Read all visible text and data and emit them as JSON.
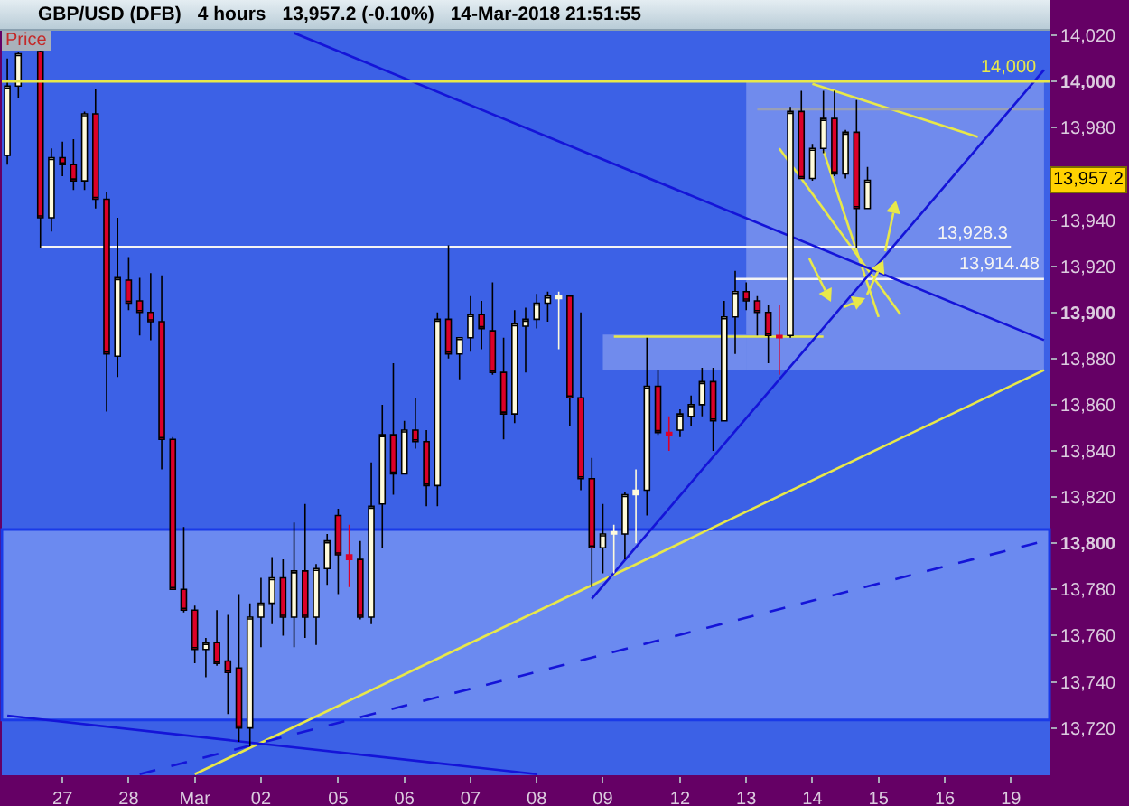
{
  "chart_data": {
    "type": "candlestick",
    "title": "GBP/USD (DFB)",
    "subtitle": "4 hours",
    "ylabel": "Price",
    "annotations": [
      "13,957.2 (-0.10%)",
      "14-Mar-2018 21:51:55",
      {
        "text": "13,957.2",
        "y": 13957.2
      }
    ],
    "categories": [
      null,
      null,
      null,
      null,
      null,
      "27",
      null,
      null,
      null,
      null,
      null,
      "28",
      null,
      null,
      null,
      null,
      null,
      "Mar",
      null,
      null,
      null,
      null,
      null,
      "02",
      null,
      null,
      null,
      null,
      null,
      null,
      "05",
      null,
      null,
      null,
      null,
      null,
      "06",
      null,
      null,
      null,
      null,
      null,
      "07",
      null,
      null,
      null,
      null,
      null,
      "08",
      null,
      null,
      null,
      null,
      null,
      "09",
      null,
      null,
      null,
      null,
      null,
      null,
      "12",
      null,
      null,
      null,
      null,
      null,
      "13",
      null,
      null,
      null,
      null,
      null,
      "14",
      null,
      null,
      null,
      null,
      null,
      "15",
      null,
      null,
      null,
      null,
      null,
      "16",
      null,
      null,
      null,
      null,
      null,
      "19",
      null,
      null,
      null
    ],
    "ohlc": [
      [
        13968,
        14010,
        13964,
        13998
      ],
      [
        13998,
        14013,
        13993,
        14012
      ],
      null,
      [
        14013,
        14014,
        13928,
        13941
      ],
      [
        13941,
        13971,
        13935,
        13967
      ],
      [
        13967,
        13974,
        13959,
        13964
      ],
      [
        13964,
        13975,
        13953,
        13957
      ],
      [
        13957,
        13987,
        13953,
        13986
      ],
      [
        13986,
        13997,
        13945,
        13949
      ],
      [
        13949,
        13952,
        13857,
        13882
      ],
      [
        13881,
        13941,
        13872,
        13915
      ],
      [
        13914,
        13924,
        13901,
        13904
      ],
      [
        13905,
        13915,
        13890,
        13900
      ],
      [
        13900,
        13917,
        13888,
        13896
      ],
      [
        13896,
        13916,
        13832,
        13845
      ],
      [
        13845,
        13846,
        13780,
        13780
      ],
      [
        13780,
        13807,
        13770,
        13771
      ],
      [
        13771,
        13773,
        13748,
        13754
      ],
      [
        13754,
        13759,
        13742,
        13757
      ],
      [
        13757,
        13771,
        13747,
        13748
      ],
      [
        13749,
        13769,
        13726,
        13744
      ],
      [
        13746,
        13778,
        13714,
        13720
      ],
      [
        13720,
        13774,
        13712,
        13768
      ],
      [
        13768,
        13785,
        13755,
        13774
      ],
      [
        13774,
        13794,
        13765,
        13785
      ],
      [
        13785,
        13793,
        13760,
        13768
      ],
      [
        13768,
        13809,
        13755,
        13788
      ],
      [
        13788,
        13817,
        13759,
        13768
      ],
      [
        13768,
        13791,
        13756,
        13789
      ],
      [
        13789,
        13804,
        13782,
        13801
      ],
      [
        13812,
        13815,
        13778,
        13795
      ],
      [
        13795,
        13808,
        13781,
        13793
      ],
      [
        13793,
        13801,
        13767,
        13768
      ],
      [
        13768,
        13835,
        13765,
        13816
      ],
      [
        13817,
        13860,
        13798,
        13847
      ],
      [
        13847,
        13878,
        13821,
        13830
      ],
      [
        13830,
        13853,
        13830,
        13849
      ],
      [
        13849,
        13863,
        13841,
        13844
      ],
      [
        13844,
        13849,
        13816,
        13825
      ],
      [
        13825,
        13900,
        13816,
        13897
      ],
      [
        13897,
        13929,
        13880,
        13882
      ],
      [
        13882,
        13889,
        13871,
        13889
      ],
      [
        13889,
        13907,
        13883,
        13899
      ],
      [
        13899,
        13905,
        13884,
        13893
      ],
      [
        13892,
        13913,
        13873,
        13874
      ],
      [
        13874,
        13889,
        13845,
        13856
      ],
      [
        13856,
        13901,
        13852,
        13895
      ],
      [
        13894,
        13902,
        13874,
        13897
      ],
      [
        13897,
        13908,
        13893,
        13904
      ],
      [
        13904,
        13909,
        13896,
        13907
      ],
      [
        13906,
        13909,
        13884,
        13907
      ],
      [
        13907,
        13907,
        13851,
        13863
      ],
      [
        13863,
        13900,
        13823,
        13828
      ],
      [
        13828,
        13837,
        13781,
        13798
      ],
      [
        13798,
        13817,
        13787,
        13804
      ],
      [
        13804,
        13808,
        13787,
        13805
      ],
      [
        13804,
        13822,
        13793,
        13821
      ],
      [
        13821,
        13832,
        13800,
        13823
      ],
      [
        13823,
        13889,
        13812,
        13868
      ],
      [
        13868,
        13875,
        13847,
        13848
      ],
      [
        13848,
        13855,
        13840,
        13847
      ],
      [
        13849,
        13858,
        13846,
        13856
      ],
      [
        13855,
        13864,
        13851,
        13860
      ],
      [
        13860,
        13876,
        13855,
        13870
      ],
      [
        13870,
        13876,
        13840,
        13853
      ],
      [
        13853,
        13905,
        13853,
        13898
      ],
      [
        13898,
        13918,
        13882,
        13909
      ],
      [
        13909,
        13913,
        13901,
        13905
      ],
      [
        13905,
        13907,
        13890,
        13900
      ],
      [
        13900,
        13903,
        13878,
        13890
      ],
      [
        13890,
        13903,
        13873,
        13889
      ],
      [
        13890,
        13989,
        13889,
        13987
      ],
      [
        13987,
        13996,
        13958,
        13958
      ],
      [
        13958,
        13973,
        13957,
        13971
      ],
      [
        13971,
        13996,
        13969,
        13984
      ],
      [
        13984,
        13996,
        13959,
        13960
      ],
      [
        13960,
        13979,
        13958,
        13978
      ],
      [
        13978,
        13992,
        13928,
        13945
      ],
      [
        13945,
        13963,
        13945,
        13957.2
      ],
      null,
      null,
      null,
      null,
      null,
      null,
      null,
      null,
      null,
      null,
      null,
      null,
      null,
      null,
      null,
      null
    ],
    "colors": [
      "#fffbdc",
      "#fffbdc",
      null,
      "#dc0028",
      "#fffbdc",
      "#dc0028",
      "#dc0028",
      "#fffbdc",
      "#dc0028",
      "#dc0028",
      "#fffbdc",
      "#dc0028",
      "#dc0028",
      "#dc0028",
      "#dc0028",
      "#dc0028",
      "#dc0028",
      "#dc0028",
      "#fffbdc",
      "#dc0028",
      "#dc0028",
      "#dc0028",
      "#fffbdc",
      "#fffbdc",
      "#fffbdc",
      "#dc0028",
      "#fffbdc",
      "#dc0028",
      "#fffbdc",
      "#fffbdc",
      "#dc0028",
      "#dc0028",
      "#dc0028",
      "#fffbdc",
      "#fffbdc",
      "#dc0028",
      "#fffbdc",
      "#dc0028",
      "#dc0028",
      "#fffbdc",
      "#dc0028",
      "#fffbdc",
      "#fffbdc",
      "#dc0028",
      "#dc0028",
      "#dc0028",
      "#fffbdc",
      "#fffbdc",
      "#fffbdc",
      "#fffbdc",
      "#fffbdc",
      "#dc0028",
      "#dc0028",
      "#dc0028",
      "#fffbdc",
      "#fffbdc",
      "#fffbdc",
      "#fffbdc",
      "#fffbdc",
      "#dc0028",
      "#dc0028",
      "#fffbdc",
      "#fffbdc",
      "#fffbdc",
      "#dc0028",
      "#fffbdc",
      "#fffbdc",
      "#dc0028",
      "#dc0028",
      "#dc0028",
      "#dc0028",
      "#fffbdc",
      "#dc0028",
      "#fffbdc",
      "#fffbdc",
      "#dc0028",
      "#fffbdc",
      "#dc0028",
      "#fffbdc",
      null,
      null,
      null,
      null,
      null,
      null,
      null,
      null,
      null,
      null,
      null,
      null,
      null,
      null,
      null,
      null
    ],
    "series": [
      {
        "type": "line",
        "color": "#e8e84a",
        "values": [
          null,
          null,
          null,
          null,
          null,
          null,
          null,
          null,
          null,
          null,
          null,
          null,
          null,
          null,
          null,
          null,
          null,
          13700,
          null,
          null,
          null,
          null,
          null,
          null,
          null,
          null,
          null,
          null,
          null,
          null,
          null,
          null,
          null,
          null,
          null,
          null,
          null,
          null,
          null,
          null,
          null,
          null,
          null,
          null,
          null,
          null,
          null,
          null,
          null,
          null,
          null,
          null,
          null,
          null,
          null,
          null,
          null,
          null,
          null,
          null,
          null,
          null,
          null,
          null,
          null,
          null,
          null,
          null,
          null,
          null,
          null,
          null,
          null,
          null,
          null,
          null,
          null,
          null,
          null,
          null,
          null,
          null,
          null,
          null,
          null,
          null,
          null,
          null,
          null,
          null,
          null,
          null,
          null,
          null,
          13875
        ]
      },
      {
        "type": "line",
        "color": "#e8e84a",
        "values": [
          null,
          null,
          null,
          null,
          null,
          null,
          null,
          null,
          null,
          null,
          null,
          null,
          null,
          null,
          null,
          null,
          null,
          null,
          null,
          null,
          null,
          null,
          null,
          null,
          null,
          null,
          null,
          null,
          null,
          null,
          null,
          null,
          null,
          null,
          null,
          null,
          null,
          null,
          null,
          null,
          null,
          null,
          null,
          null,
          null,
          null,
          null,
          null,
          null,
          null,
          null,
          null,
          null,
          null,
          null,
          null,
          null,
          null,
          null,
          null,
          null,
          null,
          null,
          null,
          null,
          null,
          null,
          null,
          null,
          null,
          null,
          null,
          null,
          13999,
          null,
          null,
          null,
          null,
          null,
          null,
          null,
          null,
          null,
          null,
          null,
          null,
          null,
          null,
          13976,
          null,
          null,
          null,
          null,
          null,
          null
        ]
      },
      {
        "type": "line",
        "color": "#e8e84a",
        "values": [
          null,
          null,
          null,
          null,
          null,
          null,
          null,
          null,
          null,
          null,
          null,
          null,
          null,
          null,
          null,
          null,
          null,
          null,
          null,
          null,
          null,
          null,
          null,
          null,
          null,
          null,
          null,
          null,
          null,
          null,
          null,
          null,
          null,
          null,
          null,
          null,
          null,
          null,
          null,
          null,
          null,
          null,
          null,
          null,
          null,
          null,
          null,
          null,
          null,
          null,
          null,
          null,
          null,
          null,
          null,
          13889.5,
          null,
          null,
          null,
          null,
          null,
          null,
          null,
          null,
          null,
          null,
          null,
          null,
          null,
          null,
          null,
          null,
          null,
          null,
          13889.5,
          null,
          null,
          null,
          null,
          null,
          null,
          null,
          null,
          null,
          null,
          null,
          null,
          null,
          null,
          null,
          null,
          null,
          null,
          null,
          null
        ],
        "lower": [
          null,
          null,
          null,
          null,
          null,
          null,
          null,
          null,
          null,
          null,
          null,
          null,
          null,
          null,
          null,
          null,
          null,
          null,
          null,
          null,
          null,
          null,
          null,
          null,
          null,
          null,
          null,
          null,
          null,
          null,
          null,
          null,
          null,
          null,
          null,
          null,
          null,
          null,
          null,
          null,
          null,
          null,
          null,
          null,
          null,
          null,
          null,
          null,
          null,
          null,
          null,
          null,
          null,
          null,
          13875,
          null,
          null,
          null,
          null,
          null,
          null,
          null,
          null,
          null,
          null,
          null,
          null,
          13875,
          null,
          null,
          null,
          null,
          null,
          null,
          null,
          null,
          null,
          null,
          null,
          null,
          null,
          null,
          null,
          null,
          null,
          null,
          null,
          null,
          null,
          null,
          null,
          null,
          null,
          null,
          null
        ],
        "upper": [
          null,
          null,
          null,
          null,
          null,
          null,
          null,
          null,
          null,
          null,
          null,
          null,
          null,
          null,
          null,
          null,
          null,
          null,
          null,
          null,
          null,
          null,
          null,
          null,
          null,
          null,
          null,
          null,
          null,
          null,
          null,
          null,
          null,
          null,
          null,
          null,
          null,
          null,
          null,
          null,
          null,
          null,
          null,
          null,
          null,
          null,
          null,
          null,
          null,
          null,
          null,
          null,
          null,
          null,
          13890.4,
          null,
          null,
          null,
          null,
          null,
          null,
          null,
          null,
          null,
          null,
          null,
          null,
          13890.4,
          null,
          null,
          null,
          null,
          null,
          null,
          null,
          null,
          null,
          null,
          null,
          null,
          null,
          null,
          null,
          null,
          null,
          null,
          null,
          null,
          null,
          null,
          null,
          null,
          null,
          null,
          null
        ]
      },
      {
        "type": "line",
        "color": "#e8e84a",
        "values": [
          null,
          null,
          null,
          null,
          null,
          null,
          null,
          null,
          null,
          null,
          null,
          null,
          null,
          null,
          null,
          null,
          null,
          null,
          null,
          null,
          null,
          null,
          null,
          null,
          null,
          null,
          null,
          null,
          null,
          null,
          null,
          null,
          null,
          null,
          null,
          null,
          null,
          null,
          null,
          null,
          null,
          null,
          null,
          null,
          null,
          null,
          null,
          null,
          null,
          null,
          null,
          null,
          null,
          null,
          null,
          null,
          null,
          null,
          null,
          null,
          null,
          null,
          null,
          null,
          null,
          null,
          null,
          null,
          null,
          null,
          13971,
          null,
          null,
          null,
          null,
          null,
          null,
          null,
          null,
          null,
          null,
          13899,
          null,
          null,
          null,
          null,
          null,
          null,
          null,
          null,
          null,
          null,
          null,
          null,
          null
        ]
      },
      {
        "type": "line",
        "color": "#e8e84a",
        "values": [
          null,
          null,
          null,
          null,
          null,
          null,
          null,
          null,
          null,
          null,
          null,
          null,
          null,
          null,
          null,
          null,
          null,
          null,
          null,
          null,
          null,
          null,
          null,
          null,
          null,
          null,
          null,
          null,
          null,
          null,
          null,
          null,
          null,
          null,
          null,
          null,
          null,
          null,
          null,
          null,
          null,
          null,
          null,
          null,
          null,
          null,
          null,
          null,
          null,
          null,
          null,
          null,
          null,
          null,
          null,
          null,
          null,
          null,
          null,
          null,
          null,
          null,
          null,
          null,
          null,
          null,
          null,
          null,
          null,
          null,
          null,
          null,
          null,
          null,
          13970,
          null,
          null,
          null,
          null,
          13898,
          null,
          null,
          null,
          null,
          null,
          null,
          null,
          null,
          null,
          null,
          null,
          null,
          null,
          null,
          null
        ]
      },
      {
        "type": "line",
        "name": "13,928.3",
        "color": "#f4f4f4",
        "values": [
          null,
          null,
          null,
          13928.3,
          null,
          null,
          null,
          null,
          null,
          null,
          null,
          null,
          null,
          null,
          null,
          null,
          null,
          null,
          null,
          null,
          null,
          null,
          null,
          null,
          null,
          null,
          null,
          null,
          null,
          null,
          null,
          null,
          null,
          null,
          null,
          null,
          null,
          null,
          null,
          null,
          null,
          null,
          null,
          null,
          null,
          null,
          null,
          null,
          null,
          null,
          null,
          null,
          null,
          null,
          null,
          null,
          null,
          null,
          null,
          null,
          null,
          null,
          null,
          null,
          null,
          null,
          null,
          null,
          null,
          null,
          null,
          null,
          null,
          null,
          null,
          null,
          null,
          null,
          null,
          null,
          null,
          null,
          null,
          null,
          null,
          null,
          null,
          null,
          null,
          null,
          null,
          13928.3,
          null,
          null,
          null
        ]
      },
      {
        "type": "line",
        "name": "13,914.48",
        "color": "#f4f4f4",
        "values": [
          null,
          null,
          null,
          null,
          null,
          null,
          null,
          null,
          null,
          null,
          null,
          null,
          null,
          null,
          null,
          null,
          null,
          null,
          null,
          null,
          null,
          null,
          null,
          null,
          null,
          null,
          null,
          null,
          null,
          null,
          null,
          null,
          null,
          null,
          null,
          null,
          null,
          null,
          null,
          null,
          null,
          null,
          null,
          null,
          null,
          null,
          null,
          null,
          null,
          null,
          null,
          null,
          null,
          null,
          null,
          null,
          null,
          null,
          null,
          null,
          null,
          null,
          null,
          null,
          null,
          null,
          13914.48,
          null,
          null,
          null,
          null,
          null,
          null,
          null,
          null,
          null,
          null,
          null,
          null,
          null,
          null,
          null,
          null,
          null,
          null,
          null,
          null,
          null,
          null,
          null,
          null,
          null,
          null,
          null,
          13914.48
        ]
      },
      {
        "type": "line",
        "color": "#9aa0b4",
        "values": [
          null,
          null,
          null,
          null,
          null,
          null,
          null,
          null,
          null,
          null,
          null,
          null,
          null,
          null,
          null,
          null,
          null,
          null,
          null,
          null,
          null,
          null,
          null,
          null,
          null,
          null,
          null,
          null,
          null,
          null,
          null,
          null,
          null,
          null,
          null,
          null,
          null,
          null,
          null,
          null,
          null,
          null,
          null,
          null,
          null,
          null,
          null,
          null,
          null,
          null,
          null,
          null,
          null,
          null,
          null,
          null,
          null,
          null,
          null,
          null,
          null,
          null,
          null,
          null,
          null,
          null,
          null,
          null,
          13988,
          null,
          null,
          null,
          null,
          null,
          null,
          null,
          null,
          null,
          null,
          null,
          null,
          null,
          null,
          null,
          null,
          null,
          null,
          null,
          null,
          null,
          null,
          null,
          null,
          null,
          13988
        ],
        "lower": [
          null,
          null,
          null,
          null,
          null,
          null,
          null,
          null,
          null,
          null,
          null,
          null,
          null,
          null,
          null,
          null,
          null,
          null,
          null,
          null,
          null,
          null,
          null,
          null,
          null,
          null,
          null,
          null,
          null,
          null,
          null,
          null,
          null,
          null,
          null,
          null,
          null,
          null,
          null,
          null,
          null,
          null,
          null,
          null,
          null,
          null,
          null,
          null,
          null,
          null,
          null,
          null,
          null,
          null,
          null,
          null,
          null,
          null,
          null,
          null,
          null,
          null,
          null,
          null,
          null,
          null,
          null,
          13875,
          null,
          null,
          null,
          null,
          null,
          null,
          null,
          null,
          null,
          null,
          null,
          null,
          null,
          null,
          null,
          null,
          null,
          null,
          null,
          null,
          null,
          null,
          null,
          null,
          null,
          null,
          13875
        ],
        "upper": [
          null,
          null,
          null,
          null,
          null,
          null,
          null,
          null,
          null,
          null,
          null,
          null,
          null,
          null,
          null,
          null,
          null,
          null,
          null,
          null,
          null,
          null,
          null,
          null,
          null,
          null,
          null,
          null,
          null,
          null,
          null,
          null,
          null,
          null,
          null,
          null,
          null,
          null,
          null,
          null,
          null,
          null,
          null,
          null,
          null,
          null,
          null,
          null,
          null,
          null,
          null,
          null,
          null,
          null,
          null,
          null,
          null,
          null,
          null,
          null,
          null,
          null,
          null,
          null,
          null,
          null,
          null,
          14000,
          null,
          null,
          null,
          null,
          null,
          null,
          null,
          null,
          null,
          null,
          null,
          null,
          null,
          null,
          null,
          null,
          null,
          null,
          null,
          null,
          null,
          null,
          null,
          null,
          null,
          null,
          14000
        ]
      },
      {
        "type": "line",
        "color": "#1414d8",
        "values": [
          null,
          null,
          null,
          null,
          null,
          null,
          null,
          null,
          null,
          null,
          null,
          null,
          null,
          null,
          null,
          null,
          null,
          null,
          null,
          null,
          null,
          null,
          null,
          null,
          null,
          null,
          14021,
          null,
          null,
          null,
          null,
          null,
          null,
          null,
          null,
          null,
          null,
          null,
          null,
          null,
          null,
          null,
          null,
          null,
          null,
          null,
          null,
          null,
          null,
          null,
          null,
          null,
          null,
          null,
          null,
          null,
          null,
          null,
          null,
          null,
          null,
          null,
          null,
          null,
          null,
          null,
          null,
          null,
          null,
          null,
          null,
          null,
          null,
          null,
          null,
          null,
          null,
          null,
          null,
          null,
          null,
          null,
          null,
          null,
          null,
          null,
          null,
          null,
          null,
          null,
          null,
          null,
          null,
          null,
          13888
        ]
      },
      {
        "type": "line",
        "color": "#1414d8",
        "values": [
          null,
          null,
          null,
          null,
          null,
          null,
          null,
          null,
          null,
          null,
          null,
          null,
          null,
          null,
          null,
          null,
          null,
          null,
          null,
          null,
          null,
          null,
          null,
          null,
          null,
          null,
          null,
          null,
          null,
          null,
          null,
          null,
          null,
          null,
          null,
          null,
          null,
          null,
          null,
          null,
          null,
          null,
          null,
          null,
          null,
          null,
          null,
          null,
          null,
          null,
          null,
          null,
          null,
          13776,
          null,
          null,
          null,
          null,
          null,
          null,
          null,
          null,
          null,
          null,
          null,
          null,
          null,
          null,
          null,
          null,
          null,
          null,
          null,
          null,
          null,
          null,
          null,
          null,
          null,
          null,
          null,
          null,
          null,
          null,
          null,
          null,
          null,
          null,
          null,
          null,
          null,
          null,
          null,
          null,
          14005
        ]
      },
      {
        "type": "line",
        "color": "#1414d8",
        "line_style": "dashed",
        "values": [
          null,
          null,
          null,
          null,
          null,
          null,
          null,
          null,
          null,
          null,
          null,
          null,
          13700,
          null,
          null,
          null,
          null,
          null,
          null,
          null,
          null,
          null,
          null,
          null,
          null,
          null,
          null,
          null,
          null,
          null,
          null,
          null,
          null,
          null,
          null,
          null,
          null,
          null,
          null,
          null,
          null,
          null,
          null,
          null,
          null,
          null,
          null,
          null,
          null,
          null,
          null,
          null,
          null,
          null,
          null,
          null,
          null,
          null,
          null,
          null,
          null,
          null,
          null,
          null,
          null,
          null,
          null,
          null,
          null,
          null,
          null,
          null,
          null,
          null,
          null,
          null,
          null,
          null,
          null,
          null,
          null,
          null,
          null,
          null,
          null,
          null,
          null,
          null,
          null,
          null,
          null,
          null,
          null,
          null,
          13801
        ]
      },
      {
        "type": "line",
        "color": "#1414d8",
        "values": [
          13725.3,
          null,
          null,
          null,
          null,
          null,
          null,
          null,
          null,
          null,
          null,
          null,
          null,
          null,
          null,
          null,
          null,
          null,
          null,
          null,
          null,
          null,
          null,
          null,
          null,
          null,
          null,
          null,
          null,
          null,
          null,
          null,
          null,
          null,
          null,
          null,
          null,
          null,
          null,
          null,
          null,
          null,
          null,
          null,
          null,
          null,
          null,
          null,
          13700,
          null,
          null,
          null,
          null,
          null,
          null,
          null,
          null,
          null,
          null,
          null,
          null,
          null,
          null,
          null,
          null,
          null,
          null,
          null,
          null,
          null,
          null,
          null,
          null,
          null,
          null,
          null,
          null,
          null,
          null,
          null,
          null,
          null,
          null,
          null,
          null,
          null,
          null,
          null,
          null,
          null,
          null,
          null,
          null,
          null,
          null
        ]
      }
    ],
    "ref_lines": [
      {
        "axis": "y",
        "value": 14000,
        "label": "14,000",
        "color": "#e8e84a"
      }
    ],
    "bands": [
      {
        "axis": "y",
        "from": 13723.5,
        "to": 13806,
        "color": "#6b8af0"
      }
    ],
    "ylim": [
      13699.5,
      14022
    ],
    "yticks": [
      {
        "value": 13720,
        "label": "13,720"
      },
      {
        "value": 13740,
        "label": "13,740"
      },
      {
        "value": 13760,
        "label": "13,760"
      },
      {
        "value": 13780,
        "label": "13,780"
      },
      {
        "value": 13800,
        "label": "13,800"
      },
      {
        "value": 13820,
        "label": "13,820"
      },
      {
        "value": 13840,
        "label": "13,840"
      },
      {
        "value": 13860,
        "label": "13,860"
      },
      {
        "value": 13880,
        "label": "13,880"
      },
      {
        "value": 13900,
        "label": "13,900"
      },
      {
        "value": 13920,
        "label": "13,920"
      },
      {
        "value": 13940,
        "label": "13,940"
      },
      {
        "value": 13980,
        "label": "13,980"
      },
      {
        "value": 14000,
        "label": "14,000"
      },
      {
        "value": 14020,
        "label": "14,020"
      }
    ]
  }
}
